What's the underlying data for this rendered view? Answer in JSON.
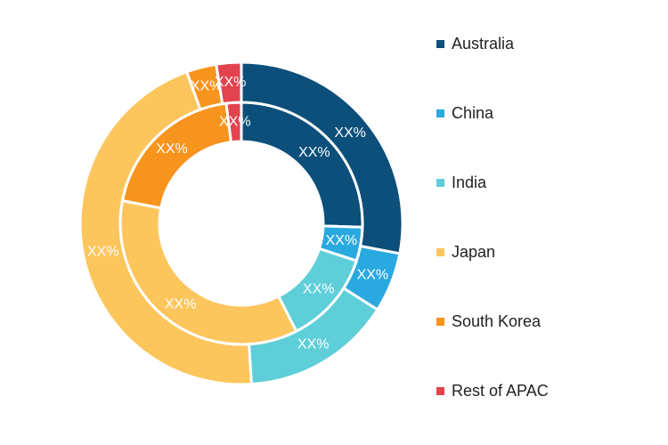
{
  "chart_data": {
    "type": "pie",
    "style": "nested-donut",
    "title": "",
    "legend_position": "right",
    "categories": [
      "Australia",
      "China",
      "India",
      "Japan",
      "South Korea",
      "Rest of APAC"
    ],
    "colors": [
      "#0b4f7a",
      "#2aa9e0",
      "#5ecfd9",
      "#fdc65d",
      "#f7941d",
      "#e2434f"
    ],
    "series": [
      {
        "ring": "inner",
        "values": [
          25.5,
          4.5,
          12.5,
          35.5,
          20.0,
          2.0
        ],
        "labels": [
          "XX%",
          "XX%",
          "XX%",
          "XX%",
          "XX%",
          "XX%"
        ]
      },
      {
        "ring": "outer",
        "values": [
          28.0,
          6.0,
          15.0,
          45.5,
          3.0,
          2.5
        ],
        "labels": [
          "XX%",
          "XX%",
          "XX%",
          "XX%",
          "XX%",
          "XX%"
        ]
      }
    ]
  }
}
